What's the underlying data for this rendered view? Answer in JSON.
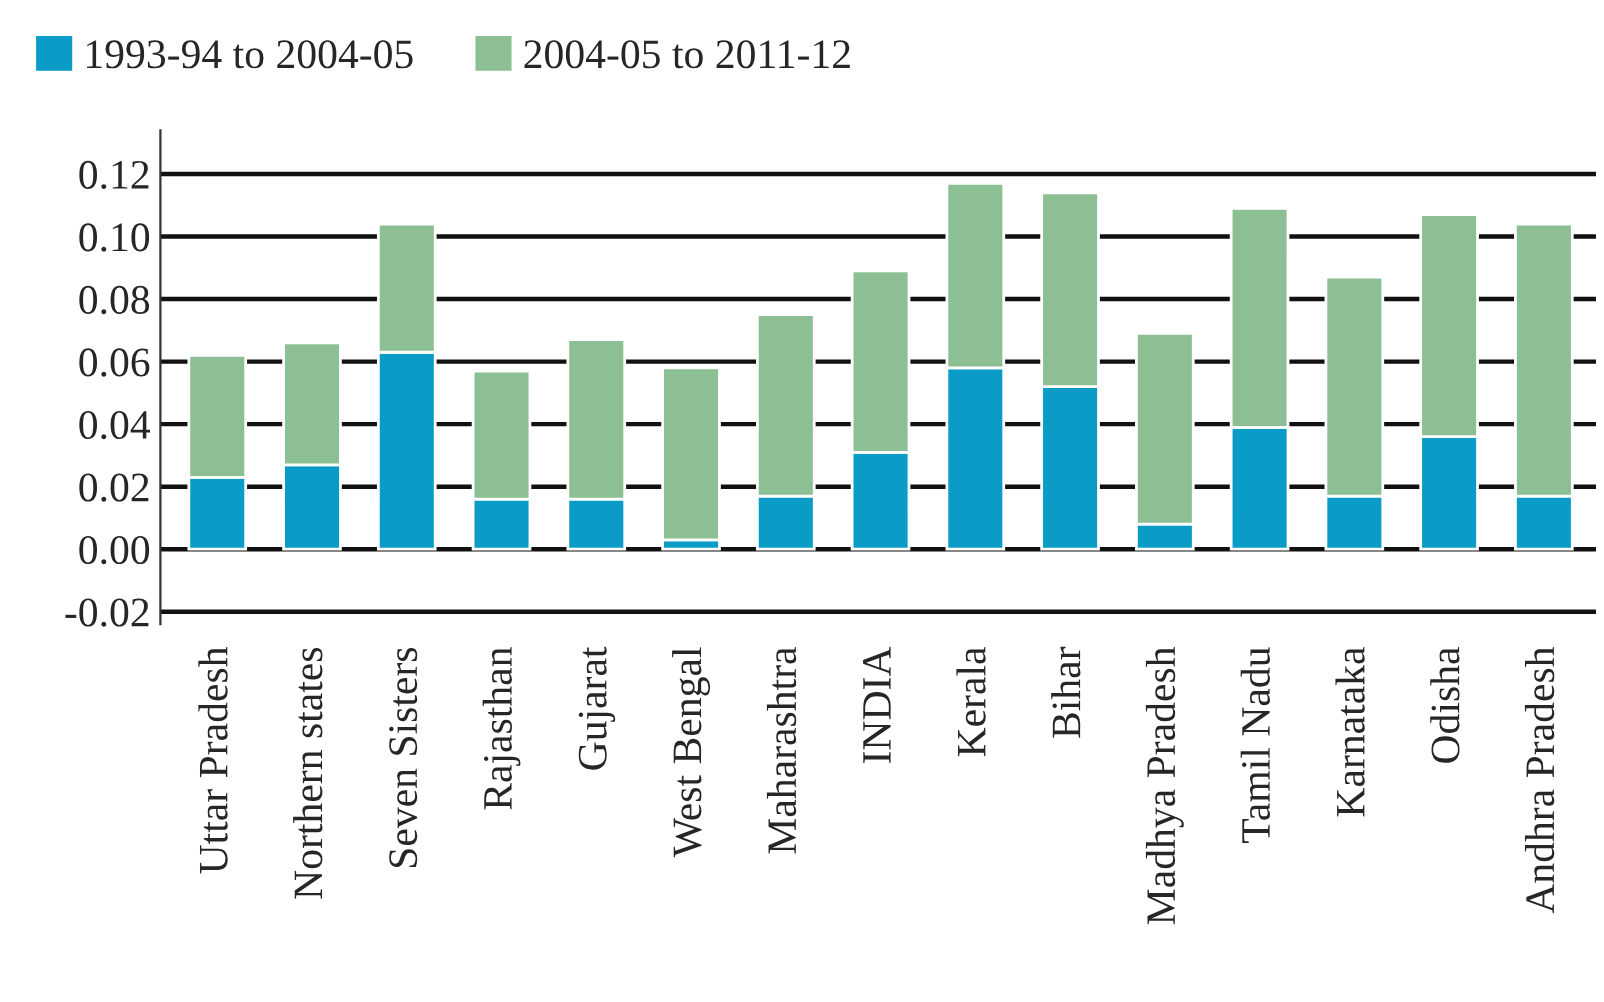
{
  "chart_data": {
    "type": "bar",
    "stacked": true,
    "categories": [
      "Uttar Pradesh",
      "Northern states",
      "Seven Sisters",
      "Rajasthan",
      "Gujarat",
      "West Bengal",
      "Maharashtra",
      "INDIA",
      "Kerala",
      "Bihar",
      "Madhya Pradesh",
      "Tamil Nadu",
      "Karnataka",
      "Odisha",
      "Andhra Pradesh"
    ],
    "series": [
      {
        "name": "1993-94 to 2004-05",
        "color": "#0a9bc6",
        "values": [
          0.023,
          0.027,
          0.063,
          0.016,
          0.016,
          0.003,
          0.017,
          0.031,
          0.058,
          0.052,
          0.008,
          0.039,
          0.017,
          0.036,
          0.017
        ]
      },
      {
        "name": "2004-05 to 2011-12",
        "color": "#8dbf95",
        "values": [
          0.039,
          0.039,
          0.041,
          0.041,
          0.051,
          0.055,
          0.058,
          0.058,
          0.059,
          0.062,
          0.061,
          0.07,
          0.07,
          0.071,
          0.087
        ]
      }
    ],
    "ylim": [
      -0.024,
      0.134
    ],
    "yticks": [
      {
        "value": -0.02,
        "label": "-0.02"
      },
      {
        "value": 0,
        "label": "0.00"
      },
      {
        "value": 0.02,
        "label": "0.02"
      },
      {
        "value": 0.04,
        "label": "0.04"
      },
      {
        "value": 0.06,
        "label": "0.06"
      },
      {
        "value": 0.08,
        "label": "0.08"
      },
      {
        "value": 0.1,
        "label": "0.10"
      },
      {
        "value": 0.12,
        "label": "0.12"
      }
    ],
    "grid": "y",
    "legend": "top left"
  }
}
